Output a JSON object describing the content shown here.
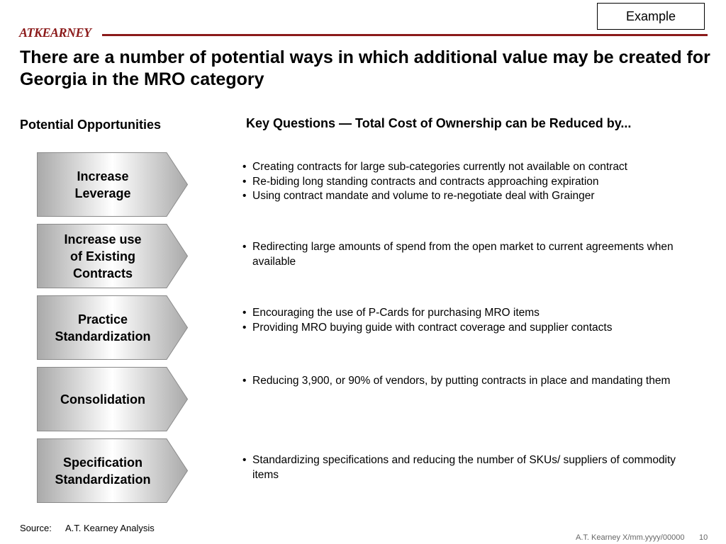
{
  "header": {
    "badge": "Example",
    "logo": "ATKEARNEY",
    "title": "There are a number of potential ways in which additional value may be created for Georgia in the MRO category"
  },
  "columns": {
    "left_heading": "Potential Opportunities",
    "right_heading": "Key Questions — Total Cost of Ownership can be Reduced by..."
  },
  "opportunities": [
    {
      "label": "Increase\nLeverage",
      "bullets": [
        "Creating contracts for large sub-categories currently not available on contract",
        "Re-biding long standing contracts and contracts approaching expiration",
        "Using contract mandate and volume to re-negotiate deal with Grainger"
      ]
    },
    {
      "label": "Increase use\nof Existing\nContracts",
      "bullets": [
        "Redirecting large amounts of spend from the open market to current agreements when available"
      ]
    },
    {
      "label": "Practice\nStandardization",
      "bullets": [
        "Encouraging the use of P-Cards for purchasing MRO items",
        "Providing MRO buying guide with contract coverage and supplier contacts"
      ]
    },
    {
      "label": "Consolidation",
      "bullets": [
        "Reducing 3,900, or 90% of vendors, by putting contracts in place and mandating them"
      ]
    },
    {
      "label": "Specification\nStandardization",
      "bullets": [
        "Standardizing specifications and reducing the number of SKUs/ suppliers of commodity items"
      ]
    }
  ],
  "footer": {
    "source_label": "Source:",
    "source_text": "A.T. Kearney Analysis",
    "reference": "A.T. Kearney X/mm.yyyy/00000",
    "page_number": "10"
  }
}
